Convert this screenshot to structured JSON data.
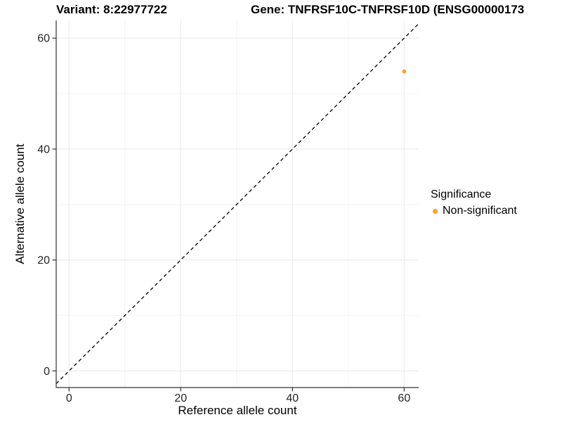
{
  "title": {
    "variant": "Variant: 8:22977722",
    "gene": "Gene: TNFRSF10C-TNFRSF10D (ENSG00000173"
  },
  "chart_data": {
    "type": "scatter",
    "xlabel": "Reference allele count",
    "ylabel": "Alternative allele count",
    "xlim": [
      -2.3,
      62.6
    ],
    "ylim": [
      -3,
      63.2
    ],
    "x_ticks": [
      0,
      20,
      40,
      60
    ],
    "y_ticks": [
      0,
      20,
      40,
      60
    ],
    "x_minor_ticks": [
      10,
      30,
      50
    ],
    "y_minor_ticks": [
      10,
      30,
      50
    ],
    "grid": true,
    "points": [
      {
        "x": 60,
        "y": 54,
        "series": "Non-significant"
      }
    ],
    "reference_line": {
      "kind": "identity",
      "style": "dashed",
      "color": "#000000"
    },
    "legend": {
      "position": "right",
      "title": "Significance",
      "items": [
        {
          "label": "Non-significant",
          "color": "#F9A132"
        }
      ]
    },
    "colors": {
      "major_grid": "#e8e8e8",
      "minor_grid": "#f3f3f3",
      "axis_line": "#333333",
      "tick_label": "#262626"
    }
  }
}
